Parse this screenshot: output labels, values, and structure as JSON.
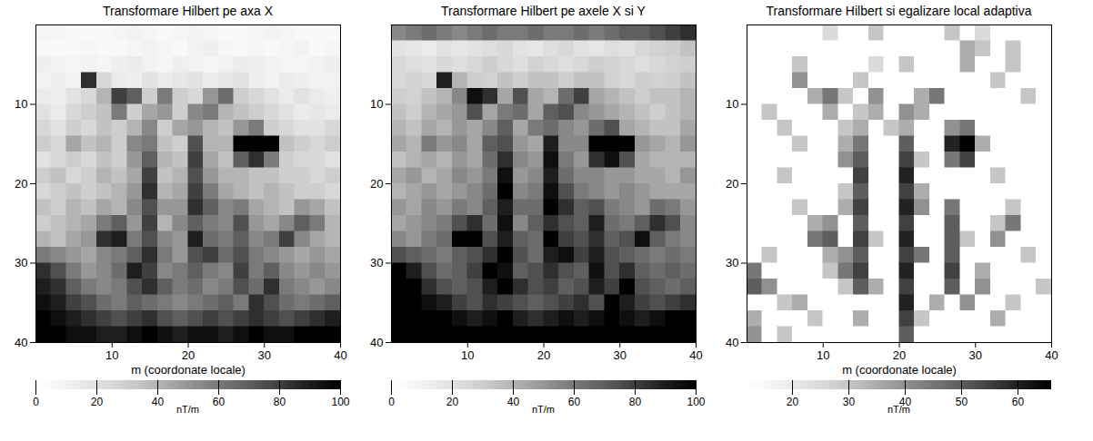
{
  "chart_data": [
    {
      "type": "heatmap",
      "title": "Transformare Hilbert pe axa X",
      "x_label": "m (coordonate locale)",
      "xlim": [
        0,
        40
      ],
      "ylim": [
        0,
        40
      ],
      "xticks": [
        10,
        20,
        30,
        40
      ],
      "yticks": [
        10,
        20,
        30,
        40
      ],
      "color_range": [
        0,
        100
      ],
      "color_ticks": [
        0,
        20,
        40,
        60,
        80,
        100
      ],
      "color_label": "nT/m",
      "cells": [
        [
          8,
          8,
          6,
          5,
          6,
          8,
          10,
          8,
          6,
          8,
          10,
          8,
          6,
          6,
          8,
          10,
          8,
          6,
          5,
          6
        ],
        [
          6,
          5,
          5,
          8,
          6,
          6,
          8,
          10,
          8,
          6,
          10,
          12,
          8,
          6,
          8,
          6,
          8,
          10,
          6,
          8
        ],
        [
          12,
          10,
          8,
          10,
          8,
          12,
          15,
          10,
          8,
          12,
          10,
          8,
          10,
          14,
          12,
          10,
          8,
          8,
          10,
          12
        ],
        [
          10,
          12,
          10,
          85,
          25,
          15,
          12,
          20,
          15,
          18,
          20,
          15,
          18,
          20,
          12,
          10,
          15,
          12,
          10,
          10
        ],
        [
          15,
          12,
          20,
          25,
          40,
          80,
          70,
          30,
          60,
          30,
          25,
          50,
          65,
          30,
          25,
          20,
          15,
          20,
          15,
          12
        ],
        [
          20,
          15,
          25,
          30,
          35,
          60,
          30,
          45,
          50,
          30,
          55,
          60,
          40,
          35,
          30,
          25,
          20,
          15,
          18,
          15
        ],
        [
          25,
          20,
          30,
          25,
          35,
          30,
          40,
          55,
          30,
          45,
          50,
          40,
          35,
          50,
          60,
          30,
          25,
          20,
          20,
          25
        ],
        [
          30,
          25,
          45,
          35,
          40,
          30,
          55,
          60,
          35,
          30,
          75,
          40,
          40,
          100,
          100,
          100,
          35,
          30,
          25,
          30
        ],
        [
          20,
          25,
          30,
          25,
          35,
          30,
          50,
          70,
          40,
          35,
          80,
          45,
          35,
          70,
          85,
          60,
          30,
          25,
          25,
          20
        ],
        [
          30,
          35,
          25,
          30,
          40,
          35,
          45,
          80,
          35,
          40,
          75,
          50,
          40,
          40,
          35,
          35,
          30,
          30,
          25,
          30
        ],
        [
          25,
          30,
          35,
          30,
          35,
          40,
          50,
          85,
          40,
          45,
          80,
          60,
          45,
          40,
          35,
          40,
          35,
          30,
          30,
          25
        ],
        [
          35,
          30,
          40,
          35,
          45,
          40,
          55,
          75,
          50,
          50,
          85,
          70,
          55,
          60,
          45,
          40,
          35,
          50,
          45,
          35
        ],
        [
          30,
          35,
          40,
          45,
          60,
          70,
          50,
          80,
          40,
          55,
          70,
          60,
          55,
          75,
          50,
          45,
          55,
          70,
          60,
          40
        ],
        [
          40,
          35,
          45,
          50,
          85,
          90,
          60,
          75,
          55,
          50,
          90,
          65,
          60,
          70,
          55,
          60,
          80,
          55,
          45,
          40
        ],
        [
          60,
          55,
          50,
          45,
          55,
          60,
          70,
          85,
          60,
          50,
          75,
          80,
          65,
          75,
          60,
          55,
          50,
          45,
          50,
          45
        ],
        [
          85,
          75,
          60,
          50,
          55,
          65,
          90,
          80,
          55,
          60,
          70,
          60,
          55,
          80,
          60,
          70,
          55,
          50,
          55,
          50
        ],
        [
          90,
          85,
          70,
          60,
          55,
          60,
          75,
          85,
          70,
          60,
          65,
          55,
          60,
          75,
          65,
          85,
          60,
          55,
          50,
          55
        ],
        [
          95,
          90,
          80,
          75,
          65,
          60,
          70,
          65,
          60,
          55,
          60,
          65,
          70,
          60,
          85,
          75,
          65,
          60,
          65,
          70
        ],
        [
          100,
          95,
          90,
          85,
          80,
          75,
          80,
          85,
          75,
          70,
          75,
          80,
          75,
          80,
          85,
          80,
          75,
          80,
          85,
          90
        ],
        [
          100,
          100,
          95,
          95,
          90,
          90,
          95,
          100,
          95,
          90,
          95,
          95,
          90,
          95,
          100,
          95,
          95,
          100,
          100,
          100
        ]
      ]
    },
    {
      "type": "heatmap",
      "title": "Transformare Hilbert pe axele X si Y",
      "xlim": [
        0,
        40
      ],
      "ylim": [
        0,
        40
      ],
      "xticks": [
        10,
        20,
        30,
        40
      ],
      "yticks": [
        10,
        20,
        30,
        40
      ],
      "color_range": [
        0,
        100
      ],
      "color_ticks": [
        0,
        20,
        40,
        60,
        80,
        100
      ],
      "color_label": "nT/m",
      "cells": [
        [
          55,
          60,
          65,
          60,
          55,
          60,
          65,
          60,
          60,
          65,
          60,
          60,
          65,
          60,
          65,
          70,
          70,
          75,
          80,
          85
        ],
        [
          20,
          18,
          15,
          20,
          18,
          20,
          22,
          25,
          20,
          18,
          22,
          25,
          20,
          18,
          22,
          20,
          25,
          28,
          30,
          35
        ],
        [
          25,
          22,
          20,
          25,
          22,
          25,
          30,
          25,
          22,
          28,
          25,
          22,
          25,
          30,
          28,
          25,
          22,
          25,
          28,
          30
        ],
        [
          25,
          28,
          25,
          90,
          40,
          30,
          28,
          35,
          30,
          35,
          35,
          30,
          35,
          35,
          28,
          25,
          30,
          28,
          30,
          35
        ],
        [
          30,
          28,
          35,
          40,
          55,
          95,
          85,
          45,
          75,
          45,
          40,
          65,
          80,
          45,
          40,
          35,
          30,
          35,
          35,
          40
        ],
        [
          35,
          30,
          40,
          45,
          50,
          75,
          45,
          60,
          65,
          45,
          70,
          75,
          55,
          50,
          45,
          40,
          35,
          30,
          35,
          40
        ],
        [
          40,
          35,
          45,
          40,
          50,
          45,
          55,
          70,
          45,
          60,
          65,
          55,
          50,
          65,
          75,
          45,
          40,
          35,
          35,
          45
        ],
        [
          45,
          40,
          60,
          50,
          55,
          45,
          70,
          75,
          50,
          45,
          90,
          55,
          55,
          100,
          100,
          100,
          50,
          45,
          40,
          50
        ],
        [
          35,
          40,
          45,
          40,
          50,
          45,
          65,
          85,
          55,
          50,
          95,
          60,
          50,
          85,
          95,
          75,
          45,
          40,
          40,
          40
        ],
        [
          45,
          50,
          40,
          45,
          55,
          50,
          60,
          95,
          50,
          55,
          90,
          65,
          55,
          55,
          50,
          50,
          45,
          45,
          40,
          50
        ],
        [
          40,
          45,
          50,
          45,
          50,
          55,
          65,
          100,
          55,
          60,
          95,
          75,
          60,
          55,
          50,
          55,
          50,
          45,
          45,
          45
        ],
        [
          50,
          45,
          55,
          50,
          60,
          55,
          70,
          90,
          65,
          65,
          100,
          85,
          70,
          75,
          60,
          55,
          50,
          65,
          60,
          50
        ],
        [
          45,
          50,
          55,
          60,
          75,
          85,
          65,
          95,
          55,
          70,
          85,
          75,
          70,
          90,
          65,
          60,
          70,
          85,
          75,
          55
        ],
        [
          55,
          50,
          60,
          65,
          100,
          100,
          75,
          90,
          70,
          65,
          100,
          80,
          75,
          85,
          70,
          75,
          95,
          70,
          60,
          55
        ],
        [
          75,
          70,
          65,
          60,
          70,
          75,
          85,
          100,
          75,
          65,
          90,
          95,
          80,
          90,
          75,
          70,
          65,
          60,
          65,
          60
        ],
        [
          100,
          90,
          75,
          65,
          70,
          80,
          100,
          95,
          70,
          75,
          85,
          75,
          70,
          95,
          75,
          85,
          70,
          65,
          70,
          65
        ],
        [
          100,
          100,
          85,
          75,
          70,
          75,
          90,
          100,
          85,
          75,
          80,
          70,
          75,
          90,
          80,
          100,
          75,
          70,
          65,
          70
        ],
        [
          100,
          100,
          95,
          90,
          80,
          75,
          85,
          80,
          75,
          70,
          75,
          80,
          85,
          75,
          100,
          90,
          80,
          75,
          80,
          85
        ],
        [
          100,
          100,
          100,
          100,
          95,
          90,
          95,
          100,
          90,
          85,
          90,
          95,
          90,
          95,
          100,
          95,
          90,
          95,
          100,
          100
        ],
        [
          100,
          100,
          100,
          100,
          100,
          100,
          100,
          100,
          100,
          100,
          100,
          100,
          100,
          100,
          100,
          100,
          100,
          100,
          100,
          100
        ]
      ]
    },
    {
      "type": "heatmap",
      "title": "Transformare Hilbert si egalizare local adaptiva",
      "x_label": "m (coordonate locale)",
      "xlim": [
        0,
        40
      ],
      "ylim": [
        0,
        40
      ],
      "xticks": [
        10,
        20,
        30,
        40
      ],
      "yticks": [
        10,
        20,
        30,
        40
      ],
      "color_range": [
        12,
        66
      ],
      "color_ticks": [
        20,
        30,
        40,
        50,
        60
      ],
      "color_label": "nT/m",
      "cells": [
        [
          12,
          12,
          12,
          12,
          12,
          25,
          12,
          12,
          30,
          12,
          12,
          12,
          12,
          30,
          12,
          25,
          12,
          12,
          12,
          12
        ],
        [
          12,
          12,
          12,
          12,
          12,
          12,
          12,
          12,
          12,
          12,
          12,
          12,
          12,
          12,
          35,
          30,
          12,
          30,
          12,
          12
        ],
        [
          12,
          12,
          12,
          30,
          12,
          12,
          12,
          12,
          25,
          12,
          30,
          12,
          12,
          12,
          35,
          12,
          12,
          30,
          12,
          12
        ],
        [
          12,
          12,
          12,
          40,
          12,
          12,
          12,
          30,
          12,
          12,
          12,
          12,
          12,
          12,
          12,
          12,
          30,
          12,
          12,
          12
        ],
        [
          12,
          12,
          12,
          12,
          35,
          45,
          30,
          12,
          40,
          12,
          12,
          35,
          45,
          12,
          12,
          12,
          12,
          12,
          30,
          12
        ],
        [
          12,
          30,
          12,
          12,
          12,
          35,
          12,
          30,
          35,
          12,
          40,
          35,
          12,
          12,
          12,
          12,
          12,
          12,
          12,
          12
        ],
        [
          12,
          12,
          30,
          12,
          12,
          12,
          30,
          35,
          12,
          30,
          35,
          12,
          12,
          40,
          45,
          12,
          12,
          12,
          12,
          12
        ],
        [
          12,
          12,
          12,
          30,
          12,
          12,
          35,
          45,
          12,
          12,
          50,
          12,
          12,
          60,
          66,
          35,
          12,
          12,
          12,
          12
        ],
        [
          12,
          12,
          12,
          12,
          12,
          12,
          40,
          50,
          12,
          12,
          55,
          30,
          12,
          45,
          55,
          12,
          12,
          12,
          12,
          12
        ],
        [
          12,
          12,
          30,
          12,
          12,
          12,
          12,
          55,
          12,
          12,
          60,
          12,
          12,
          12,
          12,
          12,
          30,
          12,
          12,
          12
        ],
        [
          12,
          12,
          12,
          12,
          12,
          12,
          30,
          50,
          12,
          12,
          55,
          35,
          12,
          12,
          12,
          12,
          12,
          12,
          12,
          12
        ],
        [
          12,
          12,
          12,
          30,
          12,
          12,
          35,
          55,
          12,
          12,
          60,
          40,
          12,
          45,
          12,
          12,
          12,
          30,
          12,
          12
        ],
        [
          12,
          12,
          12,
          12,
          35,
          40,
          12,
          50,
          12,
          12,
          55,
          12,
          12,
          50,
          12,
          12,
          30,
          45,
          12,
          12
        ],
        [
          12,
          12,
          12,
          12,
          45,
          50,
          12,
          55,
          30,
          12,
          60,
          12,
          12,
          50,
          30,
          12,
          40,
          12,
          12,
          12
        ],
        [
          12,
          30,
          12,
          12,
          12,
          35,
          40,
          50,
          12,
          12,
          55,
          45,
          12,
          50,
          12,
          12,
          12,
          12,
          30,
          12
        ],
        [
          45,
          12,
          12,
          12,
          12,
          30,
          45,
          55,
          12,
          12,
          60,
          12,
          12,
          55,
          12,
          35,
          12,
          12,
          12,
          12
        ],
        [
          50,
          40,
          12,
          12,
          12,
          12,
          30,
          50,
          35,
          12,
          55,
          12,
          12,
          50,
          12,
          40,
          12,
          12,
          12,
          30
        ],
        [
          12,
          12,
          30,
          35,
          12,
          12,
          12,
          12,
          12,
          12,
          60,
          12,
          35,
          12,
          40,
          12,
          12,
          30,
          12,
          12
        ],
        [
          35,
          12,
          12,
          12,
          30,
          12,
          12,
          35,
          12,
          12,
          55,
          30,
          12,
          12,
          12,
          12,
          35,
          12,
          12,
          12
        ],
        [
          40,
          12,
          30,
          12,
          12,
          12,
          12,
          12,
          12,
          12,
          50,
          12,
          12,
          12,
          12,
          12,
          12,
          12,
          12,
          12
        ]
      ]
    }
  ]
}
